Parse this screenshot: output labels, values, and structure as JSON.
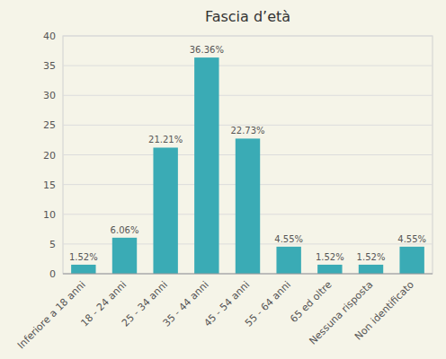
{
  "chart_data": {
    "type": "bar",
    "title": "Fascia d’età",
    "categories": [
      "Inferiore a 18 anni",
      "18 - 24 anni",
      "25 - 34 anni",
      "35 - 44 anni",
      "45 - 54 anni",
      "55 - 64 anni",
      "65 ed oltre",
      "Nessuna risposta",
      "Non identificato"
    ],
    "values": [
      1.52,
      6.06,
      21.21,
      36.36,
      22.73,
      4.55,
      1.52,
      1.52,
      4.55
    ],
    "value_labels": [
      "1.52%",
      "6.06%",
      "21.21%",
      "36.36%",
      "22.73%",
      "4.55%",
      "1.52%",
      "1.52%",
      "4.55%"
    ],
    "color": "#3aabb5",
    "ylim": [
      0,
      40
    ],
    "yticks": [
      0,
      5,
      10,
      15,
      20,
      25,
      30,
      35,
      40
    ],
    "grid": true
  }
}
